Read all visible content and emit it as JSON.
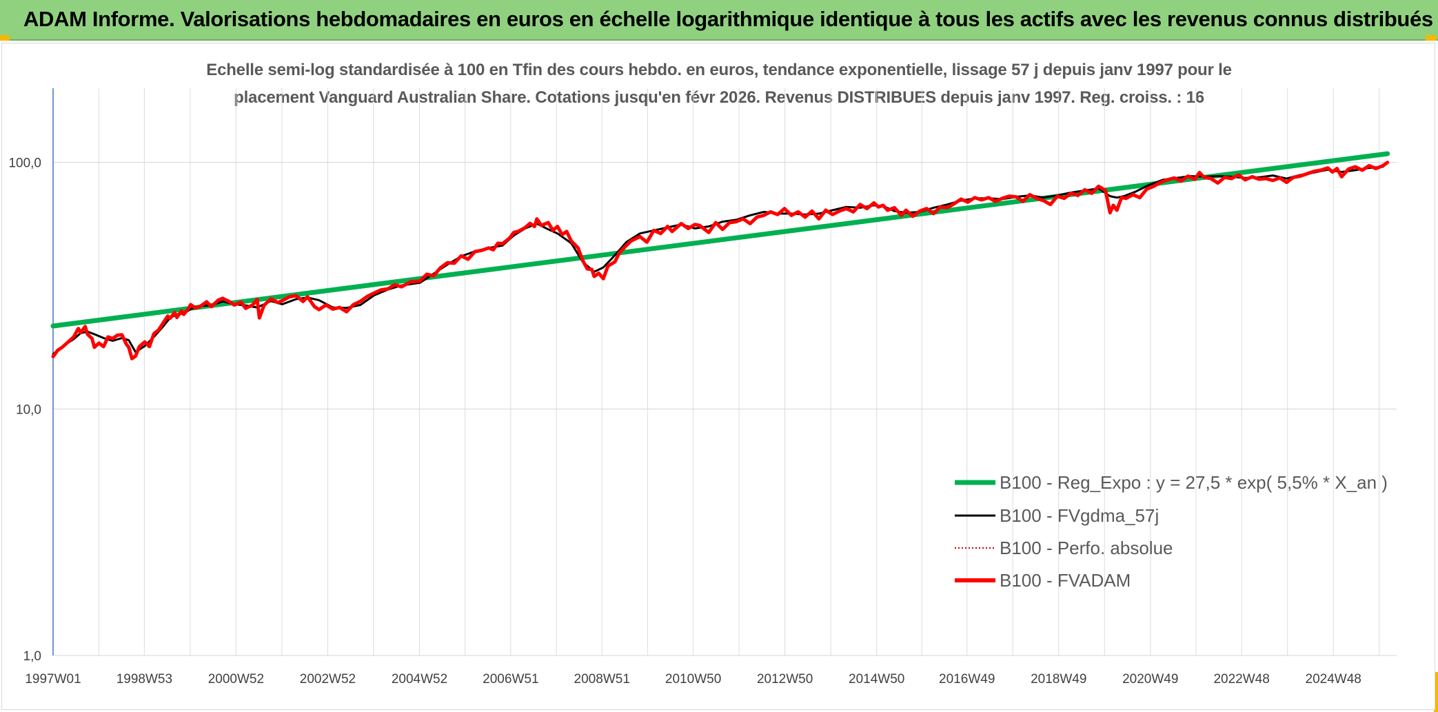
{
  "header": {
    "title": "ADAM Informe. Valorisations hebdomadaires en euros en échelle logarithmique identique à tous les actifs avec les revenus connus distribués"
  },
  "chart_data": {
    "type": "line",
    "title_line1": "Echelle semi-log standardisée à 100 en Tfin des cours hebdo. en euros, tendance exponentielle, lissage 57 j depuis janv 1997 pour le",
    "title_line2": "placement Vanguard Australian Share. Cotations jusqu'en févr 2026. Revenus DISTRIBUES depuis janv 1997. Reg. croiss. : 16",
    "y_scale": "log",
    "ylim": [
      1,
      200
    ],
    "y_ticks": [
      1,
      10,
      100
    ],
    "y_tick_labels": [
      "1,0",
      "10,0",
      "100,0"
    ],
    "xlim": [
      1997.0,
      2026.3
    ],
    "x_ticks": [
      1997.0,
      1998.99,
      2000.99,
      2002.99,
      2004.99,
      2006.98,
      2008.97,
      2010.96,
      2012.96,
      2014.96,
      2016.93,
      2018.93,
      2020.93,
      2022.92,
      2024.92
    ],
    "x_tick_labels": [
      "1997W01",
      "1998W53",
      "2000W52",
      "2002W52",
      "2004W52",
      "2006W51",
      "2008W51",
      "2010W50",
      "2012W50",
      "2014W50",
      "2016W49",
      "2018W49",
      "2020W49",
      "2022W48",
      "2024W48"
    ],
    "grid": true,
    "legend_position": "bottom-right",
    "series": [
      {
        "name": "B100 - Reg_Expo : y = 27,5 * exp( 5,5% *  X_an )",
        "color": "#00b050",
        "style": "solid",
        "x": [
          1997.0,
          2026.1
        ],
        "y": [
          21.7,
          108.5
        ]
      },
      {
        "name": "B100 - FVgdma_57j",
        "color": "#000000",
        "style": "solid",
        "x": [
          1997.0,
          1997.2,
          1997.45,
          1997.6,
          1997.75,
          1997.9,
          1998.1,
          1998.3,
          1998.5,
          1998.65,
          1998.8,
          1999.0,
          1999.2,
          1999.4,
          1999.55,
          1999.7,
          1999.85,
          2000.0,
          2000.2,
          2000.45,
          2000.7,
          2000.95,
          2001.2,
          2001.45,
          2001.75,
          2002.0,
          2002.3,
          2002.55,
          2002.8,
          2003.1,
          2003.4,
          2003.7,
          2004.0,
          2004.3,
          2004.6,
          2005.0,
          2005.3,
          2005.6,
          2005.9,
          2006.2,
          2006.5,
          2006.8,
          2007.05,
          2007.3,
          2007.55,
          2007.8,
          2008.0,
          2008.3,
          2008.55,
          2008.8,
          2009.0,
          2009.25,
          2009.5,
          2009.8,
          2010.1,
          2010.4,
          2010.7,
          2011.0,
          2011.3,
          2011.6,
          2011.9,
          2012.2,
          2012.5,
          2012.8,
          2013.1,
          2013.4,
          2013.7,
          2014.0,
          2014.3,
          2014.6,
          2014.9,
          2015.1,
          2015.35,
          2015.6,
          2015.9,
          2016.2,
          2016.5,
          2016.8,
          2017.1,
          2017.4,
          2017.7,
          2018.0,
          2018.3,
          2018.6,
          2018.9,
          2019.2,
          2019.5,
          2019.8,
          2020.05,
          2020.2,
          2020.35,
          2020.6,
          2020.9,
          2021.2,
          2021.5,
          2021.8,
          2022.1,
          2022.4,
          2022.7,
          2023.0,
          2023.3,
          2023.6,
          2023.9,
          2024.2,
          2024.5,
          2024.8,
          2025.1,
          2025.4,
          2025.7,
          2026.0,
          2026.1
        ],
        "y": [
          16.7,
          17.9,
          19.2,
          20.3,
          20.6,
          20.1,
          19.4,
          18.9,
          19.4,
          19.0,
          17.0,
          18.0,
          19.6,
          21.6,
          23.4,
          24.2,
          24.4,
          25.4,
          26.2,
          26.3,
          27.3,
          26.6,
          26.3,
          25.8,
          27.4,
          26.6,
          27.9,
          28.3,
          27.6,
          25.8,
          25.7,
          26.4,
          28.9,
          30.5,
          31.7,
          32.5,
          35.4,
          38.5,
          41.6,
          43.6,
          45.0,
          46.0,
          50.6,
          54.0,
          56.5,
          53.5,
          51.5,
          47.0,
          39.5,
          36.0,
          37.5,
          42.0,
          47.5,
          51.5,
          53.0,
          54.5,
          56.0,
          54.0,
          55.0,
          57.5,
          58.5,
          61.0,
          63.0,
          62.0,
          62.0,
          61.5,
          62.0,
          64.0,
          66.0,
          65.5,
          67.0,
          66.5,
          63.5,
          62.5,
          63.0,
          65.5,
          67.5,
          70.0,
          71.5,
          71.5,
          71.0,
          72.5,
          73.5,
          72.0,
          73.5,
          75.5,
          77.0,
          78.5,
          73.0,
          72.0,
          73.0,
          76.0,
          81.0,
          85.0,
          86.5,
          88.0,
          87.5,
          88.0,
          87.5,
          86.5,
          87.0,
          88.5,
          86.0,
          89.0,
          91.0,
          93.5,
          91.5,
          93.0,
          95.0,
          96.0,
          100.0
        ]
      },
      {
        "name": "B100 - Perfo. absolue",
        "color": "#c00000",
        "style": "dotted",
        "x": [],
        "y": []
      },
      {
        "name": "B100 - FVADAM",
        "color": "#ff0000",
        "style": "solid",
        "x": [
          1997.0,
          1997.1,
          1997.2,
          1997.3,
          1997.45,
          1997.55,
          1997.6,
          1997.7,
          1997.75,
          1997.85,
          1997.9,
          1998.0,
          1998.1,
          1998.2,
          1998.3,
          1998.4,
          1998.5,
          1998.6,
          1998.65,
          1998.72,
          1998.8,
          1998.88,
          1999.0,
          1999.1,
          1999.2,
          1999.3,
          1999.4,
          1999.5,
          1999.55,
          1999.65,
          1999.7,
          1999.8,
          1999.85,
          1999.95,
          2000.0,
          2000.1,
          2000.2,
          2000.35,
          2000.45,
          2000.6,
          2000.7,
          2000.85,
          2000.95,
          2001.1,
          2001.2,
          2001.35,
          2001.45,
          2001.5,
          2001.6,
          2001.75,
          2001.9,
          2002.0,
          2002.15,
          2002.3,
          2002.45,
          2002.55,
          2002.7,
          2002.8,
          2002.95,
          2003.1,
          2003.25,
          2003.4,
          2003.55,
          2003.7,
          2003.85,
          2004.0,
          2004.15,
          2004.3,
          2004.45,
          2004.6,
          2004.8,
          2005.0,
          2005.15,
          2005.3,
          2005.45,
          2005.6,
          2005.75,
          2005.9,
          2006.05,
          2006.2,
          2006.35,
          2006.5,
          2006.6,
          2006.7,
          2006.8,
          2006.95,
          2007.05,
          2007.15,
          2007.3,
          2007.4,
          2007.5,
          2007.55,
          2007.65,
          2007.8,
          2007.9,
          2008.0,
          2008.1,
          2008.2,
          2008.3,
          2008.45,
          2008.55,
          2008.65,
          2008.75,
          2008.8,
          2008.9,
          2009.0,
          2009.1,
          2009.25,
          2009.35,
          2009.5,
          2009.6,
          2009.8,
          2009.95,
          2010.1,
          2010.25,
          2010.4,
          2010.5,
          2010.7,
          2010.85,
          2011.0,
          2011.1,
          2011.3,
          2011.45,
          2011.6,
          2011.75,
          2011.9,
          2012.05,
          2012.2,
          2012.35,
          2012.5,
          2012.65,
          2012.8,
          2012.95,
          2013.1,
          2013.25,
          2013.4,
          2013.55,
          2013.7,
          2013.85,
          2014.0,
          2014.15,
          2014.3,
          2014.45,
          2014.6,
          2014.75,
          2014.9,
          2015.0,
          2015.1,
          2015.2,
          2015.35,
          2015.5,
          2015.6,
          2015.75,
          2015.9,
          2016.05,
          2016.2,
          2016.35,
          2016.5,
          2016.65,
          2016.8,
          2016.95,
          2017.1,
          2017.25,
          2017.4,
          2017.55,
          2017.7,
          2017.85,
          2018.0,
          2018.15,
          2018.3,
          2018.45,
          2018.6,
          2018.75,
          2018.9,
          2019.05,
          2019.2,
          2019.35,
          2019.5,
          2019.65,
          2019.8,
          2019.95,
          2020.05,
          2020.12,
          2020.2,
          2020.3,
          2020.4,
          2020.55,
          2020.7,
          2020.85,
          2021.0,
          2021.15,
          2021.3,
          2021.45,
          2021.6,
          2021.75,
          2021.9,
          2022.0,
          2022.1,
          2022.25,
          2022.4,
          2022.55,
          2022.7,
          2022.85,
          2023.0,
          2023.15,
          2023.3,
          2023.45,
          2023.6,
          2023.75,
          2023.9,
          2024.05,
          2024.2,
          2024.35,
          2024.5,
          2024.65,
          2024.8,
          2024.9,
          2025.0,
          2025.1,
          2025.25,
          2025.4,
          2025.55,
          2025.7,
          2025.85,
          2026.0,
          2026.1
        ],
        "y": [
          16.3,
          17.3,
          17.8,
          18.5,
          19.6,
          21.2,
          20.4,
          21.6,
          20.1,
          19.3,
          17.8,
          18.5,
          17.9,
          19.6,
          19.3,
          19.9,
          20.0,
          18.3,
          17.8,
          16.0,
          16.4,
          17.9,
          18.7,
          17.9,
          20.2,
          20.9,
          22.3,
          23.8,
          23.3,
          24.6,
          23.5,
          25.0,
          24.2,
          25.5,
          26.5,
          25.7,
          26.0,
          27.2,
          26.0,
          27.6,
          28.1,
          27.2,
          26.4,
          27.1,
          25.6,
          26.4,
          27.8,
          23.4,
          26.3,
          28.0,
          27.0,
          27.5,
          28.5,
          28.8,
          27.3,
          28.5,
          26.0,
          25.3,
          26.4,
          25.4,
          25.8,
          24.8,
          26.5,
          27.3,
          28.6,
          29.5,
          30.4,
          30.7,
          31.9,
          31.3,
          32.8,
          33.0,
          35.2,
          34.7,
          37.4,
          39.2,
          39.0,
          41.8,
          40.5,
          43.5,
          44.0,
          45.0,
          44.2,
          47.0,
          46.8,
          49.2,
          52.0,
          52.6,
          54.5,
          56.6,
          55.0,
          59.0,
          55.5,
          57.0,
          53.0,
          55.0,
          51.0,
          52.5,
          48.0,
          45.0,
          40.0,
          37.0,
          36.8,
          34.5,
          35.5,
          33.8,
          38.0,
          39.5,
          43.0,
          46.0,
          48.0,
          50.0,
          47.5,
          53.0,
          51.5,
          55.0,
          52.5,
          56.5,
          54.0,
          56.0,
          55.5,
          52.0,
          57.0,
          53.5,
          57.0,
          57.5,
          59.0,
          56.5,
          60.0,
          61.0,
          63.0,
          61.5,
          65.0,
          61.0,
          63.0,
          60.0,
          63.5,
          59.0,
          64.0,
          61.5,
          63.5,
          65.0,
          63.0,
          67.5,
          65.0,
          68.5,
          66.0,
          67.0,
          64.0,
          65.5,
          61.0,
          64.0,
          60.5,
          63.5,
          65.0,
          62.0,
          66.0,
          65.5,
          68.0,
          71.0,
          69.0,
          72.0,
          70.5,
          72.0,
          69.5,
          71.5,
          73.0,
          72.5,
          69.5,
          74.0,
          71.5,
          70.0,
          67.5,
          73.0,
          71.5,
          75.0,
          73.5,
          77.5,
          75.0,
          80.0,
          77.0,
          62.5,
          67.0,
          64.0,
          72.0,
          71.5,
          74.0,
          72.0,
          78.0,
          80.0,
          83.0,
          85.0,
          86.5,
          84.0,
          88.0,
          85.5,
          91.0,
          87.0,
          86.0,
          82.5,
          87.0,
          86.0,
          89.0,
          85.0,
          87.5,
          85.5,
          86.0,
          84.5,
          86.5,
          83.0,
          87.0,
          88.0,
          90.0,
          92.0,
          93.0,
          95.0,
          91.5,
          94.5,
          87.5,
          94.0,
          96.0,
          93.0,
          97.0,
          94.5,
          97.0,
          100.0
        ]
      }
    ]
  }
}
